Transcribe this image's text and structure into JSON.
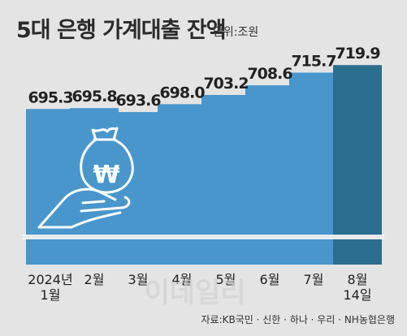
{
  "chart_data": {
    "type": "bar",
    "title": "5대 은행 가계대출 잔액",
    "unit_label": "단위:조원",
    "categories": [
      [
        "2024년",
        "1월"
      ],
      [
        "2월"
      ],
      [
        "3월"
      ],
      [
        "4월"
      ],
      [
        "5월"
      ],
      [
        "6월"
      ],
      [
        "7월"
      ],
      [
        "8월",
        "14일"
      ]
    ],
    "values": [
      695.3,
      695.8,
      693.6,
      698.0,
      703.2,
      708.6,
      715.7,
      719.9
    ],
    "value_labels": [
      "695.3",
      "695.8",
      "693.6",
      "698.0",
      "703.2",
      "708.6",
      "715.7",
      "719.9"
    ],
    "axis_break": true,
    "legend": "none",
    "grid": false,
    "colors": {
      "bar": "#4896cc",
      "highlight_bar": "#2c6e8f",
      "background": "#e4e4e4"
    },
    "source": "자료:KB국민 · 신한 · 하나 · 우리 · NH농협은행",
    "watermark": "이데일리",
    "illustration": "money-bag-hand-icon"
  }
}
